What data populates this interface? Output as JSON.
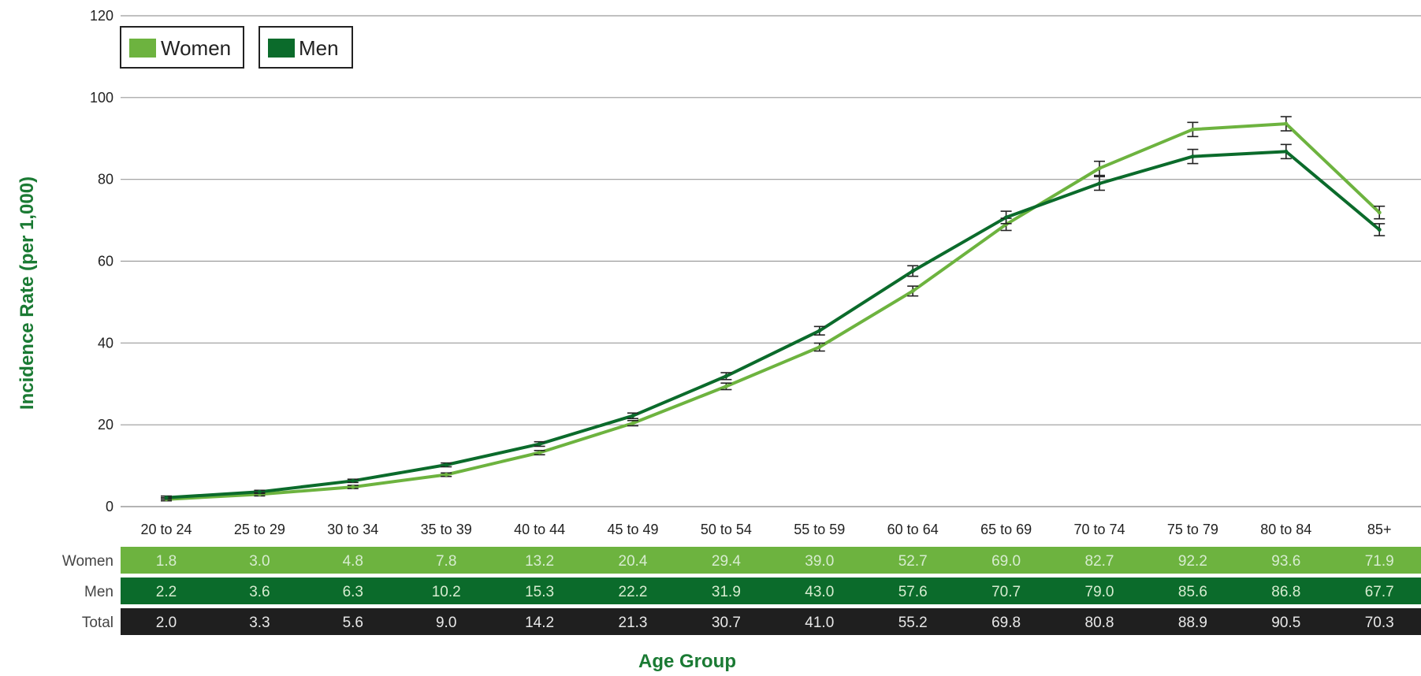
{
  "chart_data": {
    "type": "line",
    "categories": [
      "20 to 24",
      "25 to 29",
      "30 to 34",
      "35 to 39",
      "40 to 44",
      "45 to 49",
      "50 to 54",
      "55 to 59",
      "60 to 64",
      "65 to 69",
      "70 to 74",
      "75 to 79",
      "80 to 84",
      "85+"
    ],
    "ylabel": "Incidence Rate (per 1,000)",
    "xlabel": "Age Group",
    "ylim": [
      0,
      120
    ],
    "yticks": [
      "0",
      "20",
      "40",
      "60",
      "80",
      "100",
      "120"
    ],
    "grid": true,
    "legend_position": "top-left",
    "error_bars": true,
    "series": [
      {
        "name": "Women",
        "color": "#6db33f",
        "values": [
          1.8,
          3.0,
          4.8,
          7.8,
          13.2,
          20.4,
          29.4,
          39.0,
          52.7,
          69.0,
          82.7,
          92.2,
          93.6,
          71.9
        ],
        "labels": [
          "1.8",
          "3.0",
          "4.8",
          "7.8",
          "13.2",
          "20.4",
          "29.4",
          "39.0",
          "52.7",
          "69.0",
          "82.7",
          "92.2",
          "93.6",
          "71.9"
        ]
      },
      {
        "name": "Men",
        "color": "#0b6b2b",
        "values": [
          2.2,
          3.6,
          6.3,
          10.2,
          15.3,
          22.2,
          31.9,
          43.0,
          57.6,
          70.7,
          79.0,
          85.6,
          86.8,
          67.7
        ],
        "labels": [
          "2.2",
          "3.6",
          "6.3",
          "10.2",
          "15.3",
          "22.2",
          "31.9",
          "43.0",
          "57.6",
          "70.7",
          "79.0",
          "85.6",
          "86.8",
          "67.7"
        ]
      }
    ],
    "table": {
      "rows": [
        {
          "name": "Women",
          "color": "#6db33f",
          "values": [
            "1.8",
            "3.0",
            "4.8",
            "7.8",
            "13.2",
            "20.4",
            "29.4",
            "39.0",
            "52.7",
            "69.0",
            "82.7",
            "92.2",
            "93.6",
            "71.9"
          ]
        },
        {
          "name": "Men",
          "color": "#0b6b2b",
          "values": [
            "2.2",
            "3.6",
            "6.3",
            "10.2",
            "15.3",
            "22.2",
            "31.9",
            "43.0",
            "57.6",
            "70.7",
            "79.0",
            "85.6",
            "86.8",
            "67.7"
          ]
        },
        {
          "name": "Total",
          "color": "#1f1f1f",
          "values": [
            "2.0",
            "3.3",
            "5.6",
            "9.0",
            "14.2",
            "21.3",
            "30.7",
            "41.0",
            "55.2",
            "69.8",
            "80.8",
            "88.9",
            "90.5",
            "70.3"
          ]
        }
      ]
    }
  }
}
